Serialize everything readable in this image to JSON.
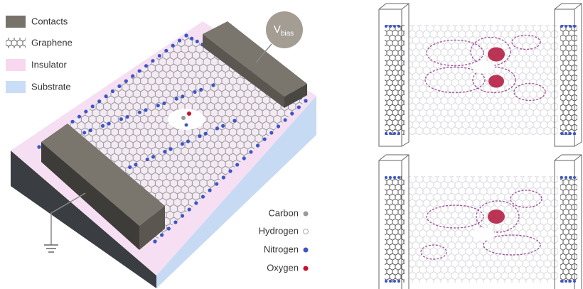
{
  "legend": {
    "items": [
      "Contacts",
      "Graphene",
      "Insulator",
      "Substrate"
    ]
  },
  "bias": {
    "main": "V",
    "sub": "bias"
  },
  "atoms": {
    "items": [
      "Carbon",
      "Hydrogen",
      "Nitrogen",
      "Oxygen"
    ]
  }
}
